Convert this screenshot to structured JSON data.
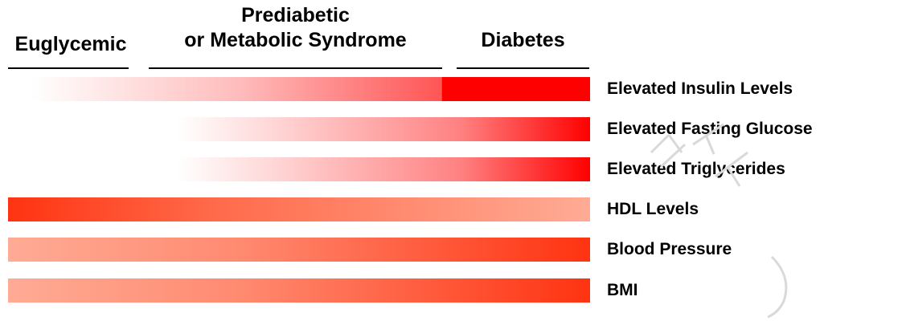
{
  "headers": {
    "euglycemic": "Euglycemic",
    "prediabetic_line1": "Prediabetic",
    "prediabetic_line2": "or Metabolic Syndrome",
    "diabetes": "Diabetes"
  },
  "colors": {
    "red": "#ff0000",
    "orange_red": "#ff3311",
    "salmon": "#ffab95"
  },
  "rows": [
    {
      "label": "Elevated Insulin Levels",
      "gradient": "white → red, solid red in Diabetes stage"
    },
    {
      "label": "Elevated Fasting Glucose",
      "gradient": "white → red"
    },
    {
      "label": "Elevated Triglycerides",
      "gradient": "white → red"
    },
    {
      "label": "HDL Levels",
      "gradient": "red → salmon"
    },
    {
      "label": "Blood Pressure",
      "gradient": "salmon → red"
    },
    {
      "label": "BMI",
      "gradient": "salmon → red"
    }
  ]
}
